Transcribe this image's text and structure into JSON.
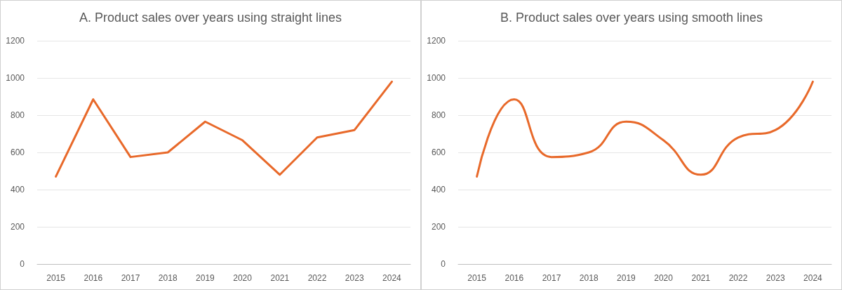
{
  "chart_data": [
    {
      "type": "line",
      "title": "A. Product sales over years using straight lines",
      "categories": [
        "2015",
        "2016",
        "2017",
        "2018",
        "2019",
        "2020",
        "2021",
        "2022",
        "2023",
        "2024"
      ],
      "series": [
        {
          "color": "#e8692a",
          "values": [
            470,
            885,
            575,
            600,
            765,
            665,
            480,
            680,
            720,
            980
          ]
        }
      ],
      "ylim": [
        0,
        1200
      ],
      "yticks": [
        0,
        200,
        400,
        600,
        800,
        1000,
        1200
      ],
      "grid": "y",
      "marker": "none",
      "line_style": "solid"
    },
    {
      "type": "line",
      "title": "B. Product sales over years using smooth lines",
      "categories": [
        "2015",
        "2016",
        "2017",
        "2018",
        "2019",
        "2020",
        "2021",
        "2022",
        "2023",
        "2024"
      ],
      "series": [
        {
          "color": "#e8692a",
          "values": [
            470,
            885,
            575,
            600,
            765,
            665,
            480,
            680,
            720,
            980
          ]
        }
      ],
      "ylim": [
        0,
        1200
      ],
      "yticks": [
        0,
        200,
        400,
        600,
        800,
        1000,
        1200
      ],
      "grid": "y",
      "marker": "none",
      "line_style": "solid"
    }
  ]
}
